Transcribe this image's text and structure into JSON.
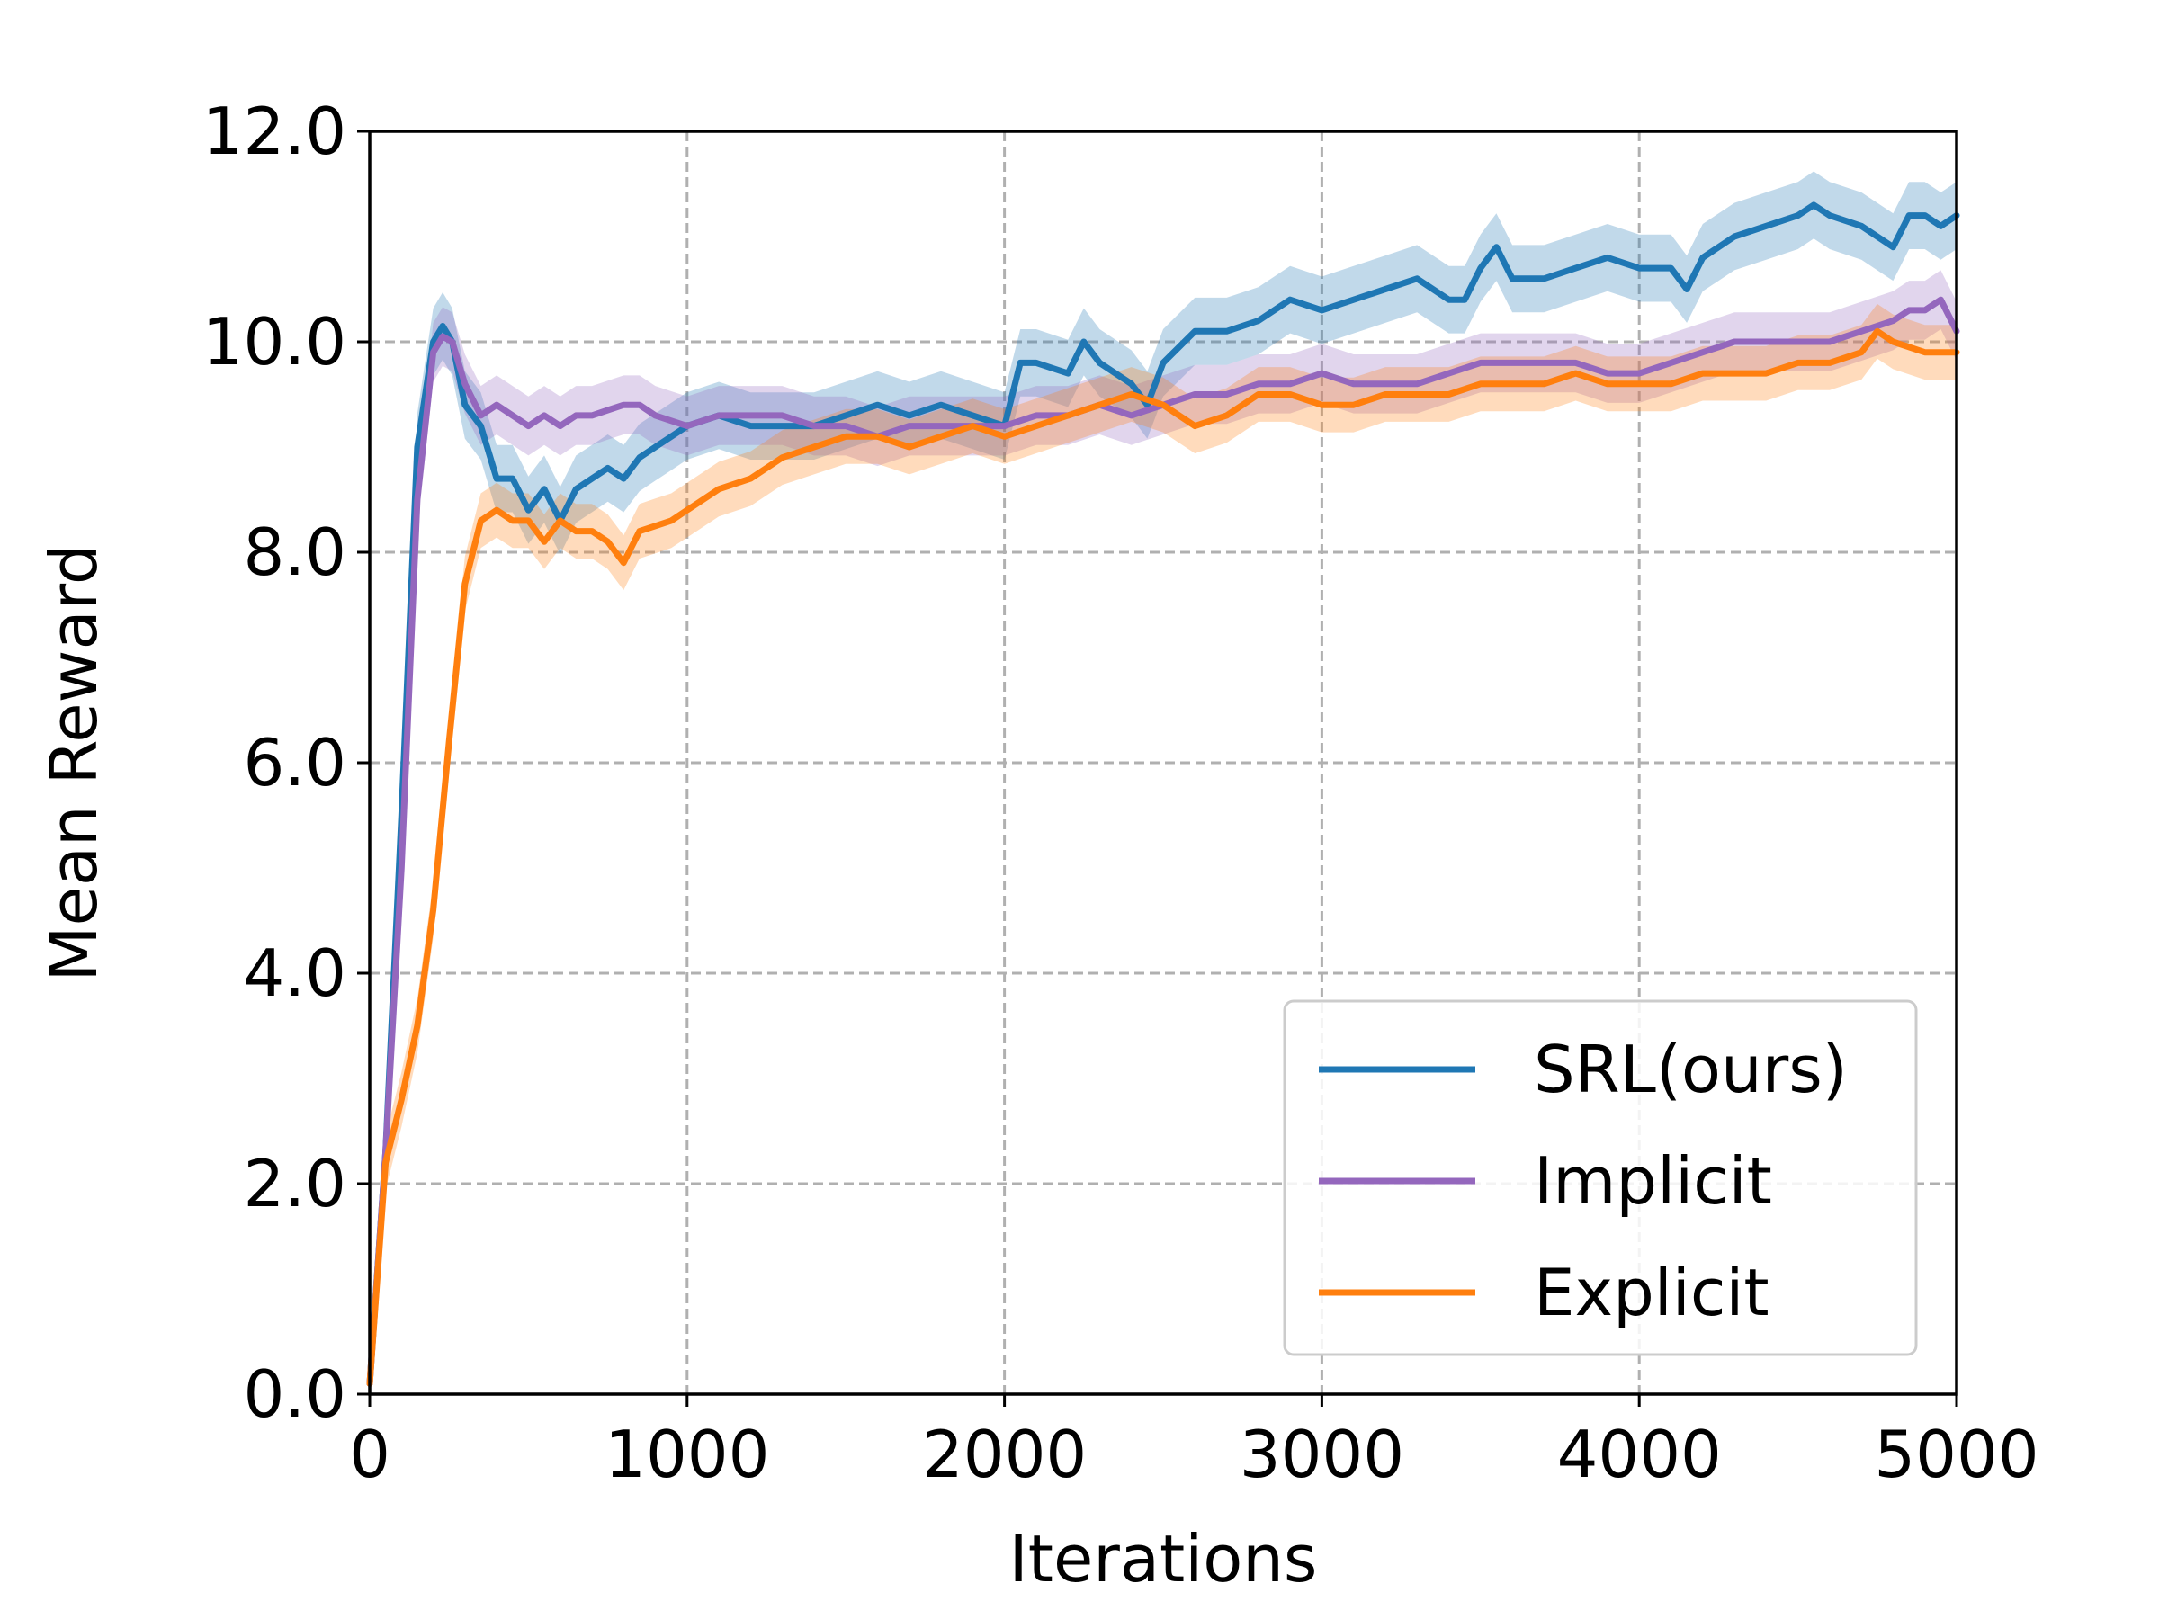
{
  "chart_data": {
    "type": "line",
    "title": "",
    "xlabel": "Iterations",
    "ylabel": "Mean Reward",
    "xlim": [
      0,
      5000
    ],
    "ylim": [
      0,
      12
    ],
    "xticks": [
      0,
      1000,
      2000,
      3000,
      4000,
      5000
    ],
    "xtick_labels": [
      "0",
      "1000",
      "2000",
      "3000",
      "4000",
      "5000"
    ],
    "yticks": [
      0,
      2,
      4,
      6,
      8,
      10,
      12
    ],
    "ytick_labels": [
      "0.0",
      "2.0",
      "4.0",
      "6.0",
      "8.0",
      "10.0",
      "12.0"
    ],
    "grid": true,
    "legend_position": "lower-right",
    "series": [
      {
        "name": "SRL(ours)",
        "color": "#1f77b4",
        "x": [
          0,
          50,
          100,
          150,
          200,
          230,
          260,
          300,
          350,
          400,
          450,
          500,
          550,
          600,
          650,
          700,
          750,
          800,
          850,
          900,
          950,
          1000,
          1100,
          1200,
          1300,
          1400,
          1500,
          1600,
          1700,
          1800,
          1900,
          2000,
          2050,
          2100,
          2200,
          2250,
          2300,
          2400,
          2450,
          2500,
          2600,
          2700,
          2800,
          2900,
          3000,
          3100,
          3200,
          3300,
          3400,
          3450,
          3500,
          3550,
          3600,
          3700,
          3800,
          3900,
          4000,
          4100,
          4150,
          4200,
          4300,
          4400,
          4500,
          4550,
          4600,
          4700,
          4800,
          4850,
          4900,
          4950,
          5000
        ],
        "y": [
          0.1,
          2.3,
          5.5,
          9.0,
          10.0,
          10.15,
          10.0,
          9.4,
          9.2,
          8.7,
          8.7,
          8.4,
          8.6,
          8.3,
          8.6,
          8.7,
          8.8,
          8.7,
          8.9,
          9.0,
          9.1,
          9.2,
          9.3,
          9.2,
          9.2,
          9.2,
          9.3,
          9.4,
          9.3,
          9.4,
          9.3,
          9.2,
          9.8,
          9.8,
          9.7,
          10.0,
          9.8,
          9.6,
          9.4,
          9.8,
          10.1,
          10.1,
          10.2,
          10.4,
          10.3,
          10.4,
          10.5,
          10.6,
          10.4,
          10.4,
          10.7,
          10.9,
          10.6,
          10.6,
          10.7,
          10.8,
          10.7,
          10.7,
          10.5,
          10.8,
          11.0,
          11.1,
          11.2,
          11.3,
          11.2,
          11.1,
          10.9,
          11.2,
          11.2,
          11.1,
          11.2
        ]
      },
      {
        "name": "Implicit",
        "color": "#9467bd",
        "x": [
          0,
          50,
          100,
          150,
          200,
          230,
          260,
          300,
          350,
          400,
          450,
          500,
          550,
          600,
          650,
          700,
          750,
          800,
          850,
          900,
          950,
          1000,
          1100,
          1200,
          1300,
          1400,
          1500,
          1600,
          1700,
          1800,
          1900,
          2000,
          2100,
          2200,
          2300,
          2400,
          2500,
          2600,
          2700,
          2800,
          2900,
          3000,
          3100,
          3200,
          3300,
          3400,
          3500,
          3600,
          3700,
          3800,
          3900,
          4000,
          4100,
          4200,
          4300,
          4400,
          4500,
          4600,
          4700,
          4800,
          4850,
          4900,
          4950,
          5000
        ],
        "y": [
          0.1,
          2.3,
          5.0,
          8.5,
          9.9,
          10.05,
          10.0,
          9.6,
          9.3,
          9.4,
          9.3,
          9.2,
          9.3,
          9.2,
          9.3,
          9.3,
          9.35,
          9.4,
          9.4,
          9.3,
          9.25,
          9.2,
          9.3,
          9.3,
          9.3,
          9.2,
          9.2,
          9.1,
          9.2,
          9.2,
          9.2,
          9.2,
          9.3,
          9.3,
          9.4,
          9.3,
          9.4,
          9.5,
          9.5,
          9.6,
          9.6,
          9.7,
          9.6,
          9.6,
          9.6,
          9.7,
          9.8,
          9.8,
          9.8,
          9.8,
          9.7,
          9.7,
          9.8,
          9.9,
          10.0,
          10.0,
          10.0,
          10.0,
          10.1,
          10.2,
          10.3,
          10.3,
          10.4,
          10.1
        ]
      },
      {
        "name": "Explicit",
        "color": "#ff7f0e",
        "x": [
          0,
          50,
          100,
          150,
          200,
          250,
          300,
          350,
          400,
          450,
          500,
          550,
          600,
          650,
          700,
          750,
          800,
          850,
          900,
          950,
          1000,
          1100,
          1200,
          1300,
          1400,
          1500,
          1600,
          1700,
          1800,
          1900,
          2000,
          2100,
          2200,
          2300,
          2400,
          2500,
          2600,
          2700,
          2800,
          2900,
          3000,
          3100,
          3200,
          3300,
          3400,
          3500,
          3600,
          3700,
          3800,
          3900,
          4000,
          4100,
          4200,
          4300,
          4400,
          4500,
          4600,
          4700,
          4750,
          4800,
          4900,
          5000
        ],
        "y": [
          0.1,
          2.2,
          2.8,
          3.5,
          4.6,
          6.2,
          7.7,
          8.3,
          8.4,
          8.3,
          8.3,
          8.1,
          8.3,
          8.2,
          8.2,
          8.1,
          7.9,
          8.2,
          8.25,
          8.3,
          8.4,
          8.6,
          8.7,
          8.9,
          9.0,
          9.1,
          9.1,
          9.0,
          9.1,
          9.2,
          9.1,
          9.2,
          9.3,
          9.4,
          9.5,
          9.4,
          9.2,
          9.3,
          9.5,
          9.5,
          9.4,
          9.4,
          9.5,
          9.5,
          9.5,
          9.6,
          9.6,
          9.6,
          9.7,
          9.6,
          9.6,
          9.6,
          9.7,
          9.7,
          9.7,
          9.8,
          9.8,
          9.9,
          10.1,
          10.0,
          9.9,
          9.9
        ]
      }
    ]
  }
}
